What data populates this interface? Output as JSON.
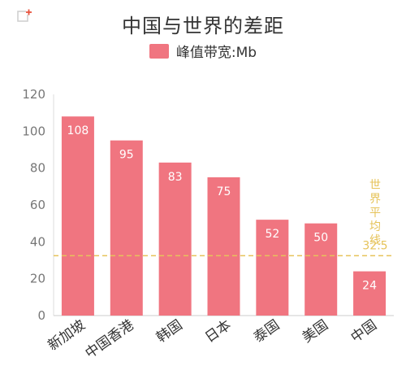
{
  "corner_icon": "new-window-icon",
  "colors": {
    "bar": "#f07580",
    "average_line": "#e6c35a",
    "axis_text": "#777777",
    "title": "#333333",
    "grid": "#e6e6e6"
  },
  "chart_data": {
    "type": "bar",
    "title": "中国与世界的差距",
    "legend": {
      "position": "top",
      "label": "峰值带宽:Mb"
    },
    "categories": [
      "新加坡",
      "中国香港",
      "韩国",
      "日本",
      "泰国",
      "美国",
      "中国"
    ],
    "series": [
      {
        "name": "峰值带宽:Mb",
        "values": [
          108,
          95,
          83,
          75,
          52,
          50,
          24
        ]
      }
    ],
    "data_labels": [
      "108",
      "95",
      "83",
      "75",
      "52",
      "50",
      "24"
    ],
    "y_ticks": [
      0,
      20,
      40,
      60,
      80,
      100,
      120
    ],
    "ylim": [
      0,
      120
    ],
    "grid": false,
    "average_line": {
      "label": "世界平均线",
      "value": 32.5,
      "value_label": "32.5"
    }
  }
}
